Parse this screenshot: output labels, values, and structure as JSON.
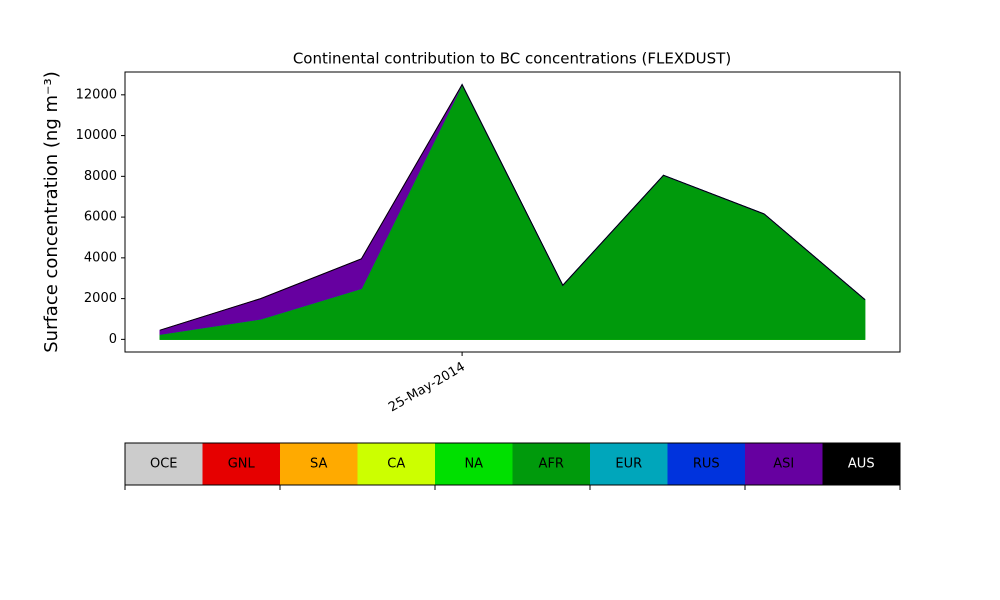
{
  "chart_data": {
    "type": "stacked-area",
    "title": "Continental contribution to BC concentrations (FLEXDUST)",
    "ylabel": "Surface concentration (ng m⁻³)",
    "categories": [
      null,
      null,
      null,
      "25-May-2014",
      null,
      null,
      null,
      null
    ],
    "series": [
      {
        "name": "OCE",
        "color": "#cccccc",
        "values": [
          0,
          0,
          0,
          0,
          0,
          0,
          0,
          0
        ]
      },
      {
        "name": "GNL",
        "color": "#e60000",
        "values": [
          0,
          0,
          0,
          0,
          0,
          0,
          0,
          0
        ]
      },
      {
        "name": "SA",
        "color": "#ffaa00",
        "values": [
          0,
          0,
          0,
          0,
          0,
          0,
          0,
          0
        ]
      },
      {
        "name": "CA",
        "color": "#ccff00",
        "values": [
          0,
          0,
          0,
          0,
          0,
          0,
          0,
          0
        ]
      },
      {
        "name": "NA",
        "color": "#00e000",
        "values": [
          0,
          0,
          0,
          0,
          0,
          0,
          0,
          0
        ]
      },
      {
        "name": "AFR",
        "color": "#009a0c",
        "values": [
          250,
          1000,
          2500,
          12500,
          2650,
          8050,
          6150,
          1950
        ]
      },
      {
        "name": "EUR",
        "color": "#00a6bb",
        "values": [
          0,
          0,
          0,
          0,
          0,
          0,
          0,
          0
        ]
      },
      {
        "name": "RUS",
        "color": "#0033dd",
        "values": [
          0,
          0,
          0,
          0,
          0,
          0,
          0,
          0
        ]
      },
      {
        "name": "ASI",
        "color": "#6600a0",
        "values": [
          200,
          1000,
          1450,
          0,
          0,
          0,
          0,
          0
        ]
      },
      {
        "name": "AUS",
        "color": "#000000",
        "values": [
          0,
          0,
          0,
          0,
          0,
          0,
          0,
          0
        ]
      }
    ],
    "ylim": [
      -620,
      13120
    ],
    "yticks": [
      0,
      2000,
      4000,
      6000,
      8000,
      10000,
      12000
    ]
  }
}
